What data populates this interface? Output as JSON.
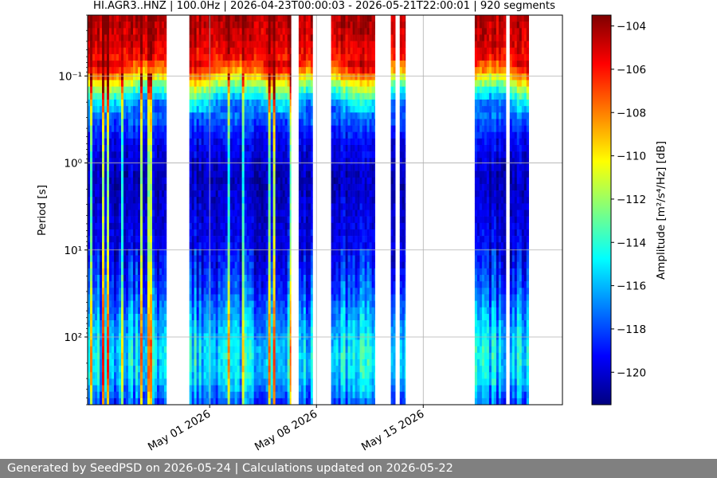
{
  "footer": {
    "text": "Generated by SeedPSD on 2026-05-24 | Calculations updated on 2026-05-22"
  },
  "colors": {
    "footer_background": "#808080",
    "colormap": [
      "#00007f",
      "#0000ff",
      "#007fff",
      "#00ffff",
      "#7fff7f",
      "#ffff00",
      "#ff7f00",
      "#ff0000",
      "#7f0000"
    ]
  },
  "chart_data": {
    "type": "heatmap",
    "title": "HI.AGR3..HNZ | 100.0Hz | 2026-04-23T00:00:03 - 2026-05-21T22:00:01 | 920 segments",
    "xlabel": "",
    "ylabel": "Period [s]",
    "colorbar_label": "Amplitude [m²/s⁴/Hz] [dB]",
    "colorbar_range": [
      -121.5,
      -103.5
    ],
    "colorbar_ticks": [
      -104,
      -106,
      -108,
      -110,
      -112,
      -114,
      -116,
      -118,
      -120
    ],
    "colorbar_tick_labels": [
      "−104",
      "−106",
      "−108",
      "−110",
      "−112",
      "−114",
      "−116",
      "−118",
      "−120"
    ],
    "x_axis": {
      "type": "date",
      "range": [
        "2026-04-23",
        "2026-05-24T03:00"
      ],
      "ticks": [
        "2026-05-01",
        "2026-05-08",
        "2026-05-15"
      ],
      "tick_labels": [
        "May 01 2026",
        "May 08 2026",
        "May 15 2026"
      ]
    },
    "y_axis": {
      "scale": "log",
      "inverted": true,
      "range": [
        0.02,
        600
      ],
      "ticks": [
        0.1,
        1,
        10,
        100
      ],
      "tick_labels": [
        "10⁻¹",
        "10⁰",
        "10¹",
        "10²"
      ]
    },
    "grid": true,
    "data_intervals": [
      {
        "start": "2026-04-23T00:00",
        "end": "2026-04-28T04:00"
      },
      {
        "start": "2026-04-29T16:00",
        "end": "2026-05-06T08:00"
      },
      {
        "start": "2026-05-06T20:00",
        "end": "2026-05-07T18:00"
      },
      {
        "start": "2026-05-08T23:00",
        "end": "2026-05-11T20:00"
      },
      {
        "start": "2026-05-12T21:00",
        "end": "2026-05-13T04:00"
      },
      {
        "start": "2026-05-13T11:00",
        "end": "2026-05-13T20:00"
      },
      {
        "start": "2026-05-18T09:00",
        "end": "2026-05-20T10:00"
      },
      {
        "start": "2026-05-20T16:00",
        "end": "2026-05-21T22:00"
      }
    ],
    "typical_amplitude_profile": [
      {
        "period": 0.022,
        "amplitude_db": -104.5
      },
      {
        "period": 0.04,
        "amplitude_db": -105
      },
      {
        "period": 0.08,
        "amplitude_db": -106.5
      },
      {
        "period": 0.13,
        "amplitude_db": -112
      },
      {
        "period": 0.2,
        "amplitude_db": -116
      },
      {
        "period": 0.35,
        "amplitude_db": -118
      },
      {
        "period": 0.6,
        "amplitude_db": -119.5
      },
      {
        "period": 1.5,
        "amplitude_db": -120.5
      },
      {
        "period": 3,
        "amplitude_db": -120
      },
      {
        "period": 10,
        "amplitude_db": -119.5
      },
      {
        "period": 30,
        "amplitude_db": -118
      },
      {
        "period": 60,
        "amplitude_db": -116.5
      },
      {
        "period": 150,
        "amplitude_db": -115
      },
      {
        "period": 300,
        "amplitude_db": -115.5
      },
      {
        "period": 600,
        "amplitude_db": -118
      }
    ]
  }
}
